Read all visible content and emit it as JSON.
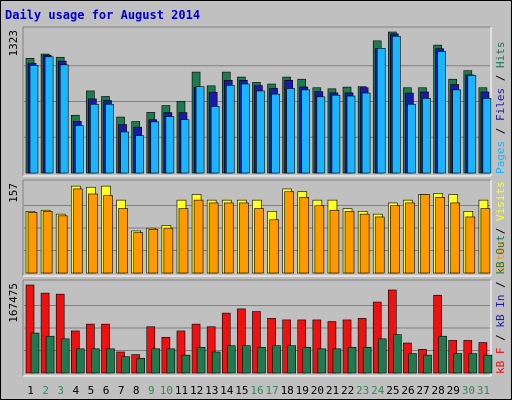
{
  "title": "Daily usage for August 2014",
  "colors": {
    "hits": "#1f7a4f",
    "files": "#1a1aa8",
    "pages": "#19b6ff",
    "visits": "#ffff22",
    "sites": "#ff9900",
    "kb_in": "#ee1111",
    "kb_out": "#1f7a4f",
    "day_weekday": "#000000",
    "day_weekend": "#2e8b57"
  },
  "chart_data": [
    {
      "type": "bar",
      "name": "top",
      "ytick_label": "1323",
      "legend": [
        {
          "text": "Pages",
          "color": "#19b6ff"
        },
        {
          "text": "Files",
          "color": "#1a1aa8"
        },
        {
          "text": "Hits",
          "color": "#1f7a4f"
        }
      ],
      "ylim": [
        0,
        1323
      ],
      "series": [
        {
          "name": "Hits",
          "values": [
            1076,
            1116,
            1086,
            542,
            770,
            718,
            525,
            483,
            569,
            633,
            673,
            947,
            818,
            947,
            900,
            850,
            835,
            900,
            880,
            800,
            790,
            806,
            810,
            1240,
            1323,
            800,
            800,
            1200,
            880,
            960,
            800
          ]
        },
        {
          "name": "Files",
          "values": [
            1030,
            1105,
            1050,
            485,
            695,
            680,
            455,
            430,
            500,
            567,
            567,
            803,
            758,
            870,
            870,
            820,
            794,
            870,
            807,
            763,
            752,
            752,
            800,
            1166,
            1305,
            750,
            760,
            1166,
            830,
            920,
            760
          ]
        },
        {
          "name": "Pages",
          "values": [
            1010,
            1090,
            1015,
            445,
            645,
            645,
            385,
            350,
            480,
            530,
            500,
            810,
            625,
            823,
            835,
            770,
            740,
            793,
            780,
            715,
            730,
            722,
            750,
            1170,
            1283,
            645,
            700,
            1140,
            780,
            915,
            700
          ]
        }
      ]
    },
    {
      "type": "bar",
      "name": "middle",
      "ytick_label": "157",
      "legend": [
        {
          "text": "Sites",
          "color": "#ff9900"
        },
        {
          "text": "Visits",
          "color": "#ffff22"
        }
      ],
      "ylim": [
        0,
        157
      ],
      "series": [
        {
          "name": "Visits",
          "values": [
            110,
            112,
            105,
            155,
            153,
            155,
            130,
            75,
            80,
            85,
            130,
            140,
            130,
            130,
            130,
            130,
            110,
            150,
            145,
            130,
            130,
            115,
            110,
            105,
            125,
            130,
            140,
            142,
            140,
            110,
            130
          ]
        },
        {
          "name": "Sites",
          "values": [
            108,
            110,
            102,
            150,
            141,
            138,
            115,
            72,
            78,
            80,
            115,
            130,
            125,
            125,
            125,
            115,
            95,
            145,
            135,
            120,
            112,
            110,
            105,
            100,
            120,
            125,
            140,
            135,
            125,
            100,
            115
          ]
        }
      ]
    },
    {
      "type": "bar",
      "name": "bottom",
      "ytick_label": "167475",
      "legend": [
        {
          "text": "kB F",
          "color": "#ee1111"
        },
        {
          "text": "kB In",
          "color": "#1a1aa8"
        },
        {
          "text": "kB Out",
          "color": "#1f7a4f"
        }
      ],
      "ylim": [
        0,
        167475
      ],
      "series": [
        {
          "name": "kB F",
          "values": [
            167475,
            152000,
            150000,
            80000,
            93000,
            93000,
            40000,
            35000,
            88000,
            68000,
            80000,
            93000,
            88000,
            114000,
            122000,
            117000,
            104000,
            101000,
            101000,
            101000,
            98000,
            101000,
            104000,
            135000,
            158000,
            57000,
            45000,
            148000,
            62000,
            62000,
            58000
          ]
        },
        {
          "name": "kB Out",
          "values": [
            76000,
            70000,
            65000,
            46000,
            46000,
            46000,
            31000,
            28000,
            46000,
            46000,
            34000,
            49000,
            40000,
            52000,
            52000,
            49000,
            52000,
            52000,
            49000,
            46000,
            46000,
            49000,
            49000,
            65000,
            73000,
            37000,
            34000,
            70000,
            37000,
            37000,
            34000
          ]
        }
      ]
    }
  ],
  "days": [
    {
      "label": "1",
      "weekend": false
    },
    {
      "label": "2",
      "weekend": true
    },
    {
      "label": "3",
      "weekend": true
    },
    {
      "label": "4",
      "weekend": false
    },
    {
      "label": "5",
      "weekend": false
    },
    {
      "label": "6",
      "weekend": false
    },
    {
      "label": "7",
      "weekend": false
    },
    {
      "label": "8",
      "weekend": false
    },
    {
      "label": "9",
      "weekend": true
    },
    {
      "label": "10",
      "weekend": true
    },
    {
      "label": "11",
      "weekend": false
    },
    {
      "label": "12",
      "weekend": false
    },
    {
      "label": "13",
      "weekend": false
    },
    {
      "label": "14",
      "weekend": false
    },
    {
      "label": "15",
      "weekend": false
    },
    {
      "label": "16",
      "weekend": true
    },
    {
      "label": "17",
      "weekend": true
    },
    {
      "label": "18",
      "weekend": false
    },
    {
      "label": "19",
      "weekend": false
    },
    {
      "label": "20",
      "weekend": false
    },
    {
      "label": "21",
      "weekend": false
    },
    {
      "label": "22",
      "weekend": false
    },
    {
      "label": "23",
      "weekend": true
    },
    {
      "label": "24",
      "weekend": true
    },
    {
      "label": "25",
      "weekend": false
    },
    {
      "label": "26",
      "weekend": false
    },
    {
      "label": "27",
      "weekend": false
    },
    {
      "label": "28",
      "weekend": false
    },
    {
      "label": "29",
      "weekend": false
    },
    {
      "label": "30",
      "weekend": true
    },
    {
      "label": "31",
      "weekend": true
    }
  ]
}
